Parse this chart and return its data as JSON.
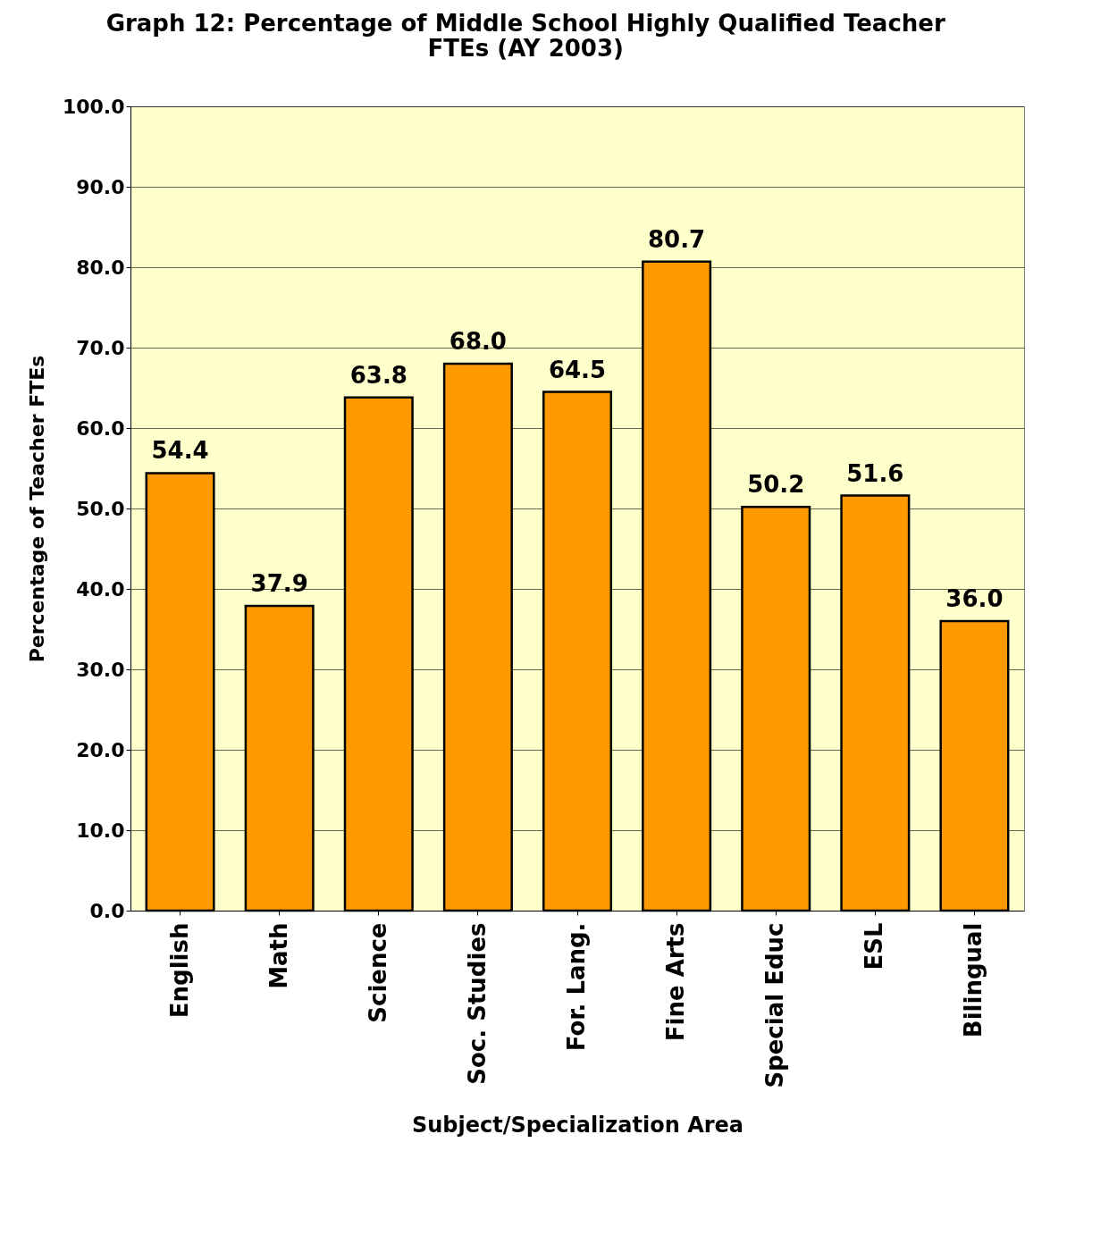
{
  "chart_data": {
    "type": "bar",
    "title": "Graph 12: Percentage of Middle School Highly Qualified Teacher FTEs (AY 2003)",
    "xlabel": "Subject/Specialization Area",
    "ylabel": "Percentage of Teacher FTEs",
    "categories": [
      "English",
      "Math",
      "Science",
      "Soc. Studies",
      "For. Lang.",
      "Fine Arts",
      "Special Educ",
      "ESL",
      "Bilingual"
    ],
    "values": [
      54.4,
      37.9,
      63.8,
      68.0,
      64.5,
      80.7,
      50.2,
      51.6,
      36.0
    ],
    "value_labels": [
      "54.4",
      "37.9",
      "63.8",
      "68.0",
      "64.5",
      "80.7",
      "50.2",
      "51.6",
      "36.0"
    ],
    "color": "#ff9900",
    "ylim": [
      0,
      100
    ],
    "yticks": [
      {
        "value": 0,
        "label": "0.0"
      },
      {
        "value": 10,
        "label": "10.0"
      },
      {
        "value": 20,
        "label": "20.0"
      },
      {
        "value": 30,
        "label": "30.0"
      },
      {
        "value": 40,
        "label": "40.0"
      },
      {
        "value": 50,
        "label": "50.0"
      },
      {
        "value": 60,
        "label": "60.0"
      },
      {
        "value": 70,
        "label": "70.0"
      },
      {
        "value": 80,
        "label": "80.0"
      },
      {
        "value": 90,
        "label": "90.0"
      },
      {
        "value": 100,
        "label": "100.0"
      }
    ],
    "grid": "y"
  }
}
